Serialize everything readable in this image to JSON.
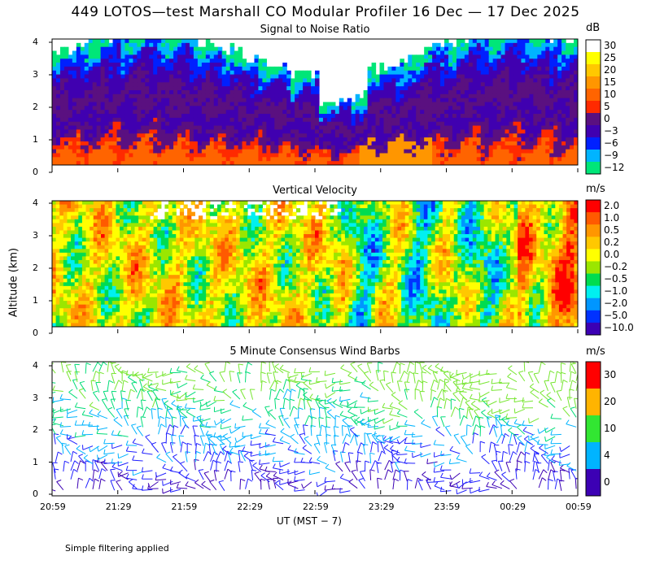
{
  "title": "449 LOTOS—test Marshall CO Modular Profiler 16 Dec — 17 Dec 2025",
  "ylabel": "Altitude (km)",
  "xlabel": "UT  (MST − 7)",
  "footnote": "Simple filtering applied",
  "chart_data": [
    {
      "type": "heatmap",
      "title": "Signal to Noise Ratio",
      "unit": "dB",
      "x_ticks": [
        "20:59",
        "21:29",
        "21:59",
        "22:29",
        "22:59",
        "23:29",
        "23:59",
        "00:29",
        "00:59"
      ],
      "y_ticks": [
        "0",
        "1",
        "2",
        "3",
        "4"
      ],
      "ylim": [
        0,
        4
      ],
      "colorbar": [
        {
          "label": "30",
          "color": "#ffffff"
        },
        {
          "label": "25",
          "color": "#ffff00"
        },
        {
          "label": "20",
          "color": "#ffc800"
        },
        {
          "label": "15",
          "color": "#ff9600"
        },
        {
          "label": "10",
          "color": "#ff6400"
        },
        {
          "label": "5",
          "color": "#ff2a00"
        },
        {
          "label": "0",
          "color": "#5a1080"
        },
        {
          "label": "−3",
          "color": "#4000b0"
        },
        {
          "label": "−6",
          "color": "#0020ff"
        },
        {
          "label": "−9",
          "color": "#00b4ff"
        },
        {
          "label": "−12",
          "color": "#00e678"
        }
      ]
    },
    {
      "type": "heatmap",
      "title": "Vertical Velocity",
      "unit": "m/s",
      "x_ticks": [
        "20:59",
        "21:29",
        "21:59",
        "22:29",
        "22:59",
        "23:29",
        "23:59",
        "00:29",
        "00:59"
      ],
      "y_ticks": [
        "0",
        "1",
        "2",
        "3",
        "4"
      ],
      "ylim": [
        0,
        4
      ],
      "colorbar": [
        {
          "label": "2.0",
          "color": "#ff0000"
        },
        {
          "label": "1.0",
          "color": "#ff5a00"
        },
        {
          "label": "0.5",
          "color": "#ff9600"
        },
        {
          "label": "0.2",
          "color": "#ffc800"
        },
        {
          "label": "0.0",
          "color": "#ffff00"
        },
        {
          "label": "−0.2",
          "color": "#9be600"
        },
        {
          "label": "−0.5",
          "color": "#00dc50"
        },
        {
          "label": "−1.0",
          "color": "#00f0f0"
        },
        {
          "label": "−2.0",
          "color": "#0096ff"
        },
        {
          "label": "−5.0",
          "color": "#0032ff"
        },
        {
          "label": "−10.0",
          "color": "#3c00b4"
        }
      ]
    },
    {
      "type": "scatter",
      "title": "5 Minute Consensus Wind Barbs",
      "unit": "m/s",
      "x_ticks": [
        "20:59",
        "21:29",
        "21:59",
        "22:29",
        "22:59",
        "23:29",
        "23:59",
        "00:29",
        "00:59"
      ],
      "y_ticks": [
        "0",
        "1",
        "2",
        "3",
        "4"
      ],
      "ylim": [
        0,
        4
      ],
      "colorbar": [
        {
          "label": "30",
          "color": "#ff0000"
        },
        {
          "label": "20",
          "color": "#ffb400"
        },
        {
          "label": "10",
          "color": "#32e632"
        },
        {
          "label": "4",
          "color": "#00b4ff"
        },
        {
          "label": "0",
          "color": "#3c00b4"
        }
      ]
    }
  ]
}
